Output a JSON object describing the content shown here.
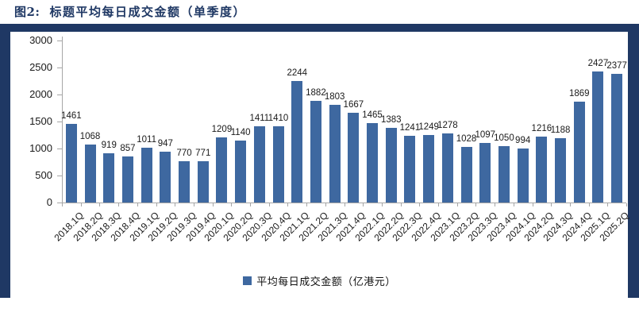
{
  "header": {
    "figure_no": "图2:",
    "title": "标题平均每日成交金额（单季度）"
  },
  "colors": {
    "accent_navy": "#1f3864",
    "bar_blue": "#3e68a0",
    "axis_gray": "#a6a6a6"
  },
  "legend": {
    "label": "平均每日成交金额（亿港元）"
  },
  "chart_data": {
    "type": "bar",
    "title": "标题平均每日成交金额（单季度）",
    "series_name": "平均每日成交金额（亿港元）",
    "categories": [
      "2018.1Q",
      "2018.2Q",
      "2018.3Q",
      "2018.4Q",
      "2019.1Q",
      "2019.2Q",
      "2019.3Q",
      "2019.4Q",
      "2020.1Q",
      "2020.2Q",
      "2020.3Q",
      "2020.4Q",
      "2021.1Q",
      "2021.2Q",
      "2021.3Q",
      "2021.4Q",
      "2022.1Q",
      "2022.2Q",
      "2022.3Q",
      "2022.4Q",
      "2023.1Q",
      "2023.2Q",
      "2023.3Q",
      "2023.4Q",
      "2024.1Q",
      "2024.2Q",
      "2024.3Q",
      "2024.4Q",
      "2025.1Q",
      "2025.2Q"
    ],
    "values": [
      1461,
      1068,
      919,
      857,
      1011,
      947,
      770,
      771,
      1209,
      1140,
      1411,
      1410,
      2244,
      1882,
      1803,
      1667,
      1465,
      1383,
      1241,
      1249,
      1278,
      1028,
      1097,
      1050,
      994,
      1216,
      1188,
      1869,
      2427,
      2377
    ],
    "xlabel": "",
    "ylabel": "",
    "ylim": [
      0,
      3000
    ],
    "yticks": [
      0,
      500,
      1000,
      1500,
      2000,
      2500,
      3000
    ],
    "grid": false,
    "data_labels": true,
    "legend_position": "bottom"
  }
}
